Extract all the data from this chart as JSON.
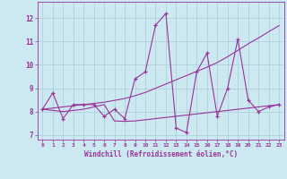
{
  "xlabel": "Windchill (Refroidissement éolien,°C)",
  "x_values": [
    0,
    1,
    2,
    3,
    4,
    5,
    6,
    7,
    8,
    9,
    10,
    11,
    12,
    13,
    14,
    15,
    16,
    17,
    18,
    19,
    20,
    21,
    22,
    23
  ],
  "line1_y": [
    8.1,
    8.8,
    7.7,
    8.3,
    8.3,
    8.3,
    7.8,
    8.1,
    7.7,
    9.4,
    9.7,
    11.7,
    12.2,
    7.3,
    7.1,
    9.7,
    10.5,
    7.8,
    9.0,
    11.1,
    8.5,
    8.0,
    8.2,
    8.3
  ],
  "line2_y": [
    8.1,
    8.15,
    8.2,
    8.25,
    8.3,
    8.35,
    8.4,
    8.48,
    8.56,
    8.68,
    8.82,
    9.0,
    9.18,
    9.36,
    9.54,
    9.72,
    9.9,
    10.1,
    10.35,
    10.62,
    10.9,
    11.15,
    11.42,
    11.68
  ],
  "line3_y": [
    8.1,
    8.05,
    8.0,
    8.05,
    8.1,
    8.2,
    8.3,
    7.6,
    7.58,
    7.6,
    7.65,
    7.7,
    7.75,
    7.8,
    7.85,
    7.9,
    7.95,
    8.0,
    8.05,
    8.1,
    8.15,
    8.2,
    8.25,
    8.3
  ],
  "line_color": "#993399",
  "bg_color": "#cce8f0",
  "grid_color": "#aaccd8",
  "tick_color": "#993399",
  "label_color": "#993399",
  "ylim": [
    6.8,
    12.7
  ],
  "yticks": [
    7,
    8,
    9,
    10,
    11,
    12
  ],
  "xlim": [
    -0.5,
    23.5
  ]
}
